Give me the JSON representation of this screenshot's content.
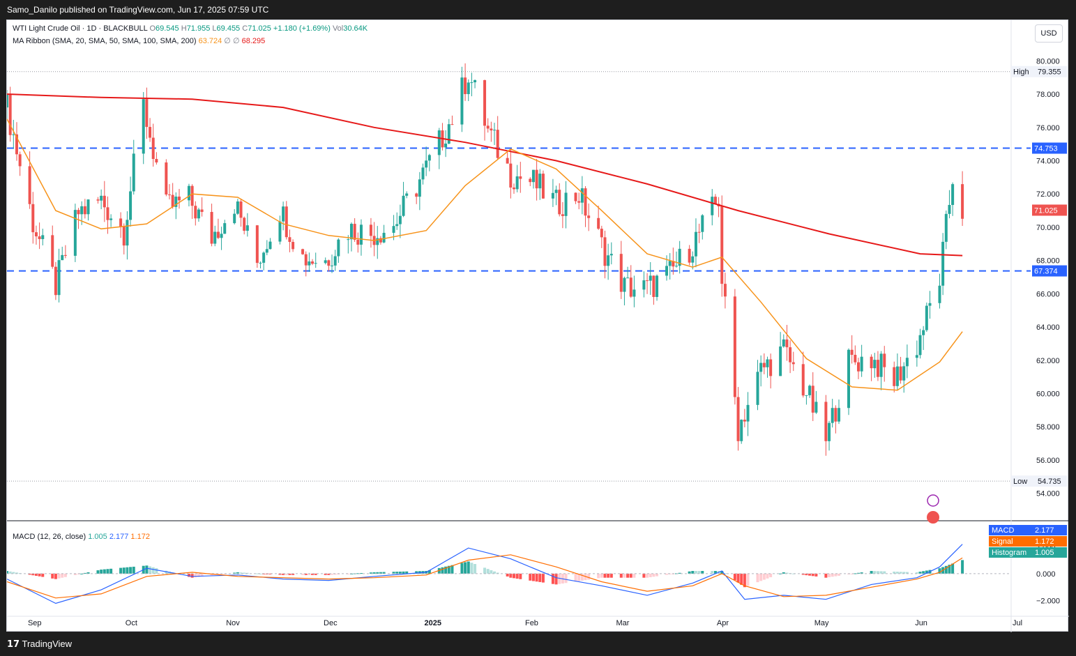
{
  "header": {
    "publisher_line": "Samo_Danilo published on TradingView.com, Jun 17, 2025 07:59 UTC"
  },
  "footer": {
    "brand": "TradingView",
    "logo_glyph": "𝟭𝟳"
  },
  "currency": "USD",
  "legend": {
    "symbol": "WTI Light Crude Oil · 1D · BLACKBULL",
    "open_label": "O",
    "open": "69.545",
    "high_label": "H",
    "high": "71.955",
    "low_label": "L",
    "low": "69.455",
    "close_label": "C",
    "close": "71.025",
    "change": "+1.180 (+1.69%)",
    "vol_label": "Vol",
    "vol": "30.64K",
    "ma_label": "MA Ribbon (SMA, 20, SMA, 50, SMA, 100, SMA, 200)",
    "ma20": "63.724",
    "ma_empty1": "∅",
    "ma_empty2": "∅",
    "ma200": "68.295",
    "macd_label": "MACD (12, 26, close)",
    "macd_hist": "1.005",
    "macd_line": "2.177",
    "macd_signal": "1.172"
  },
  "price_axis": {
    "labels": [
      "80.000",
      "78.000",
      "76.000",
      "74.000",
      "72.000",
      "70.000",
      "68.000",
      "66.000",
      "64.000",
      "62.000",
      "60.000",
      "58.000",
      "56.000",
      "54.000"
    ],
    "high_tag": "High",
    "high_value": "79.355",
    "low_tag": "Low",
    "low_value": "54.735",
    "level_upper": "74.753",
    "level_lower": "67.374",
    "last_price": "71.025"
  },
  "macd_axis": {
    "labels": [
      "2.000",
      "0.000",
      "−2.000"
    ],
    "macd_tag": "MACD",
    "macd_value": "2.177",
    "signal_tag": "Signal",
    "signal_value": "1.172",
    "hist_tag": "Histogram",
    "hist_value": "1.005"
  },
  "time_axis": [
    "Sep",
    "Oct",
    "Nov",
    "Dec",
    "2025",
    "Feb",
    "Mar",
    "Apr",
    "May",
    "Jun",
    "Jul"
  ],
  "colors": {
    "up": "#26a69a",
    "down": "#ef5350",
    "ma20": "#f7931a",
    "ma200": "#e61919",
    "level": "#2962ff",
    "macd": "#2962ff",
    "signal": "#ff6d00",
    "hist_up_strong": "#26a69a",
    "hist_up_weak": "#b2dfdb",
    "hist_down_strong": "#ff5252",
    "hist_down_weak": "#ffcdd2"
  },
  "chart_data": {
    "type": "candlestick",
    "instrument": "WTI Light Crude Oil",
    "interval": "1D",
    "x_range": [
      "2024-08-26",
      "2025-07-01"
    ],
    "y_range": [
      53.4,
      80.6
    ],
    "horizontal_levels": [
      74.753,
      67.374
    ],
    "session_high": 79.355,
    "session_low": 54.735,
    "last_close": 71.025,
    "close_series": [
      [
        "2024-08-26",
        77.2
      ],
      [
        "2024-09-03",
        70.3
      ],
      [
        "2024-09-10",
        66.5
      ],
      [
        "2024-09-17",
        70.9
      ],
      [
        "2024-09-24",
        71.6
      ],
      [
        "2024-10-01",
        69.8
      ],
      [
        "2024-10-07",
        77.3
      ],
      [
        "2024-10-14",
        71.1
      ],
      [
        "2024-10-21",
        71.7
      ],
      [
        "2024-10-28",
        69.4
      ],
      [
        "2024-11-04",
        71.5
      ],
      [
        "2024-11-11",
        67.9
      ],
      [
        "2024-11-18",
        71.1
      ],
      [
        "2024-11-25",
        68.2
      ],
      [
        "2024-12-02",
        68.0
      ],
      [
        "2024-12-09",
        69.9
      ],
      [
        "2024-12-16",
        69.6
      ],
      [
        "2024-12-23",
        70.1
      ],
      [
        "2025-01-02",
        73.5
      ],
      [
        "2025-01-10",
        76.6
      ],
      [
        "2025-01-15",
        79.3
      ],
      [
        "2025-01-21",
        75.8
      ],
      [
        "2025-01-28",
        73.2
      ],
      [
        "2025-02-04",
        72.7
      ],
      [
        "2025-02-11",
        71.4
      ],
      [
        "2025-02-18",
        72.0
      ],
      [
        "2025-02-25",
        68.9
      ],
      [
        "2025-03-04",
        66.4
      ],
      [
        "2025-03-11",
        66.3
      ],
      [
        "2025-03-18",
        67.2
      ],
      [
        "2025-03-25",
        69.0
      ],
      [
        "2025-04-02",
        71.7
      ],
      [
        "2025-04-03",
        66.9
      ],
      [
        "2025-04-08",
        57.9
      ],
      [
        "2025-04-15",
        61.4
      ],
      [
        "2025-04-22",
        62.6
      ],
      [
        "2025-04-29",
        60.1
      ],
      [
        "2025-05-05",
        57.2
      ],
      [
        "2025-05-12",
        61.9
      ],
      [
        "2025-05-19",
        62.1
      ],
      [
        "2025-05-26",
        60.8
      ],
      [
        "2025-06-02",
        62.9
      ],
      [
        "2025-06-09",
        66.9
      ],
      [
        "2025-06-13",
        73.0
      ],
      [
        "2025-06-16",
        71.025
      ]
    ],
    "sma20_series": [
      [
        "2024-08-26",
        76.5
      ],
      [
        "2024-09-10",
        71.0
      ],
      [
        "2024-09-24",
        69.9
      ],
      [
        "2024-10-08",
        70.2
      ],
      [
        "2024-10-22",
        72.0
      ],
      [
        "2024-11-05",
        71.8
      ],
      [
        "2024-11-19",
        70.2
      ],
      [
        "2024-12-03",
        69.5
      ],
      [
        "2024-12-17",
        69.2
      ],
      [
        "2025-01-02",
        69.8
      ],
      [
        "2025-01-14",
        72.5
      ],
      [
        "2025-01-28",
        74.7
      ],
      [
        "2025-02-11",
        73.5
      ],
      [
        "2025-02-25",
        71.0
      ],
      [
        "2025-03-11",
        68.4
      ],
      [
        "2025-03-25",
        67.6
      ],
      [
        "2025-04-03",
        68.2
      ],
      [
        "2025-04-15",
        65.5
      ],
      [
        "2025-04-29",
        62.1
      ],
      [
        "2025-05-13",
        60.4
      ],
      [
        "2025-05-27",
        60.2
      ],
      [
        "2025-06-09",
        61.9
      ],
      [
        "2025-06-16",
        63.724
      ]
    ],
    "sma200_series": [
      [
        "2024-08-26",
        78.0
      ],
      [
        "2024-09-24",
        77.8
      ],
      [
        "2024-10-22",
        77.7
      ],
      [
        "2024-11-19",
        77.2
      ],
      [
        "2024-12-17",
        76.0
      ],
      [
        "2025-01-14",
        75.1
      ],
      [
        "2025-02-11",
        74.0
      ],
      [
        "2025-03-11",
        72.6
      ],
      [
        "2025-04-08",
        71.0
      ],
      [
        "2025-05-06",
        69.6
      ],
      [
        "2025-06-03",
        68.4
      ],
      [
        "2025-06-16",
        68.295
      ]
    ],
    "macd": {
      "params": "12, 26, close",
      "y_range": [
        -3.0,
        3.4
      ],
      "macd_series": [
        [
          "2024-08-26",
          -0.4
        ],
        [
          "2024-09-10",
          -2.2
        ],
        [
          "2024-09-24",
          -1.2
        ],
        [
          "2024-10-08",
          0.4
        ],
        [
          "2024-10-22",
          -0.2
        ],
        [
          "2024-11-05",
          -0.1
        ],
        [
          "2024-11-19",
          -0.4
        ],
        [
          "2024-12-03",
          -0.5
        ],
        [
          "2024-12-17",
          -0.2
        ],
        [
          "2025-01-02",
          0.1
        ],
        [
          "2025-01-15",
          1.9
        ],
        [
          "2025-01-28",
          1.1
        ],
        [
          "2025-02-11",
          -0.3
        ],
        [
          "2025-02-25",
          -0.9
        ],
        [
          "2025-03-11",
          -1.6
        ],
        [
          "2025-03-25",
          -0.7
        ],
        [
          "2025-04-03",
          0.2
        ],
        [
          "2025-04-10",
          -1.9
        ],
        [
          "2025-04-22",
          -1.6
        ],
        [
          "2025-05-05",
          -1.9
        ],
        [
          "2025-05-19",
          -0.8
        ],
        [
          "2025-06-02",
          -0.3
        ],
        [
          "2025-06-09",
          0.5
        ],
        [
          "2025-06-16",
          2.177
        ]
      ],
      "signal_series": [
        [
          "2024-08-26",
          -0.6
        ],
        [
          "2024-09-10",
          -1.8
        ],
        [
          "2024-09-24",
          -1.5
        ],
        [
          "2024-10-08",
          -0.2
        ],
        [
          "2024-10-22",
          0.1
        ],
        [
          "2024-11-05",
          -0.2
        ],
        [
          "2024-11-19",
          -0.3
        ],
        [
          "2024-12-03",
          -0.4
        ],
        [
          "2024-12-17",
          -0.3
        ],
        [
          "2025-01-02",
          -0.1
        ],
        [
          "2025-01-15",
          1.0
        ],
        [
          "2025-01-28",
          1.4
        ],
        [
          "2025-02-11",
          0.5
        ],
        [
          "2025-02-25",
          -0.6
        ],
        [
          "2025-03-11",
          -1.3
        ],
        [
          "2025-03-25",
          -0.9
        ],
        [
          "2025-04-03",
          0.0
        ],
        [
          "2025-04-10",
          -0.9
        ],
        [
          "2025-04-22",
          -1.7
        ],
        [
          "2025-05-05",
          -1.6
        ],
        [
          "2025-05-19",
          -1.0
        ],
        [
          "2025-06-02",
          -0.4
        ],
        [
          "2025-06-09",
          0.1
        ],
        [
          "2025-06-16",
          1.172
        ]
      ],
      "last": {
        "macd": 2.177,
        "signal": 1.172,
        "histogram": 1.005
      }
    }
  }
}
